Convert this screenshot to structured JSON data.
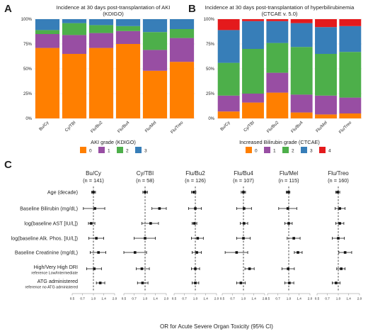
{
  "panel_a": {
    "letter": "A",
    "chart_data": {
      "type": "bar",
      "stacked": true,
      "title": "Incidence at 30 days post-transplantation of AKI\n(KDIGO)",
      "title_lines": [
        "Incidence at 30 days post-transplantation of AKI",
        "(KDIGO)"
      ],
      "categories": [
        "Bu/Cy",
        "Cy/TBI",
        "Flu/Bu2",
        "Flu/Bu4",
        "Flu/Mel",
        "Flu/Treo"
      ],
      "y_ticks": [
        "0%",
        "25%",
        "50%",
        "75%",
        "100%"
      ],
      "ylim": [
        0,
        100
      ],
      "legend_title": "AKI grade (KDIGO)",
      "legend_placement": "bottom",
      "series": [
        {
          "name": "0",
          "color": "#FF7F00",
          "values": [
            71,
            65,
            71,
            75,
            48,
            57
          ]
        },
        {
          "name": "1",
          "color": "#984EA3",
          "values": [
            14,
            19,
            15,
            13,
            21,
            24
          ]
        },
        {
          "name": "2",
          "color": "#4DAF4A",
          "values": [
            4,
            12,
            8,
            5,
            18,
            9
          ]
        },
        {
          "name": "3",
          "color": "#377EB8",
          "values": [
            11,
            4,
            6,
            7,
            13,
            10
          ]
        }
      ]
    }
  },
  "panel_b": {
    "letter": "B",
    "chart_data": {
      "type": "bar",
      "stacked": true,
      "title": "Incidence at 30 days post-transplantation of hyperbilirubinemia\n(CTCAE v. 5.0)",
      "title_lines": [
        "Incidence at 30 days post-transplantation of hyperbilirubinemia",
        "(CTCAE v. 5.0)"
      ],
      "categories": [
        "Bu/Cy",
        "Cy/TBI",
        "Flu/Bu2",
        "Flu/Bu4",
        "Flu/Mel",
        "Flu/Treo"
      ],
      "y_ticks": [
        "0%",
        "25%",
        "50%",
        "75%",
        "100%"
      ],
      "ylim": [
        0,
        100
      ],
      "legend_title": "Increased Bilirubin grade (CTCAE)",
      "legend_placement": "bottom",
      "series": [
        {
          "name": "0",
          "color": "#FF7F00",
          "values": [
            7,
            16,
            26,
            6,
            4,
            5
          ]
        },
        {
          "name": "1",
          "color": "#984EA3",
          "values": [
            16,
            9,
            20,
            18,
            19,
            16
          ]
        },
        {
          "name": "2",
          "color": "#4DAF4A",
          "values": [
            33,
            45,
            30,
            48,
            42,
            46
          ]
        },
        {
          "name": "3",
          "color": "#377EB8",
          "values": [
            33,
            28,
            22,
            24,
            27,
            26
          ]
        },
        {
          "name": "4",
          "color": "#E41A1C",
          "values": [
            11,
            2,
            2,
            4,
            8,
            7
          ]
        }
      ]
    }
  },
  "panel_c": {
    "letter": "C",
    "chart_data": {
      "type": "scatter",
      "subtype": "forest",
      "x_scale": "log",
      "xlabel": "OR for Acute Severe Organ Toxicity (95% CI)",
      "x_ticks": [
        0.5,
        0.7,
        1.0,
        1.4,
        2.0
      ],
      "x_tick_labels": [
        "0.5",
        "0.7",
        "1.0",
        "1.4",
        "2.0"
      ],
      "reference_line": 1.0,
      "rows": [
        {
          "label": "Age (decade)",
          "sublabel": ""
        },
        {
          "label": "Baseline Bilirubin (mg/dL)",
          "sublabel": ""
        },
        {
          "label": "log(baseline AST [IU/L])",
          "sublabel": ""
        },
        {
          "label": "log(baseline Alk. Phos. [IU/L])",
          "sublabel": ""
        },
        {
          "label": "Baseline Creatinine (mg/dL)",
          "sublabel": ""
        },
        {
          "label": "High/Very High DRI",
          "sublabel": "reference Low/Intermediate"
        },
        {
          "label": "ATG administered",
          "sublabel": "reference no ATG administered"
        }
      ],
      "groups": [
        {
          "name": "Bu/Cy",
          "n": "(n = 141)",
          "or": [
            1.0,
            1.05,
            0.93,
            1.1,
            1.18,
            1.03,
            1.25
          ],
          "lo": [
            0.94,
            0.72,
            0.85,
            0.86,
            0.9,
            0.8,
            1.1
          ],
          "hi": [
            1.07,
            1.45,
            1.05,
            1.4,
            1.5,
            1.3,
            1.45
          ]
        },
        {
          "name": "Cy/TBI",
          "n": "(n = 58)",
          "or": [
            1.0,
            1.6,
            1.2,
            1.0,
            0.72,
            0.9,
            0.92
          ],
          "lo": [
            0.93,
            1.25,
            0.9,
            0.7,
            0.5,
            0.75,
            0.78
          ],
          "hi": [
            1.08,
            2.0,
            1.55,
            1.4,
            1.05,
            1.15,
            1.1
          ]
        },
        {
          "name": "Flu/Bu2",
          "n": "(n = 126)",
          "or": [
            0.95,
            1.0,
            0.97,
            1.08,
            1.05,
            1.0,
            1.0
          ],
          "lo": [
            0.88,
            0.8,
            0.9,
            0.88,
            0.9,
            0.88,
            0.9
          ],
          "hi": [
            1.02,
            1.22,
            1.05,
            1.3,
            1.22,
            1.15,
            1.12
          ]
        },
        {
          "name": "Flu/Bu4",
          "n": "(n = 107)",
          "or": [
            1.0,
            1.02,
            1.02,
            1.0,
            0.8,
            1.22,
            0.92
          ],
          "lo": [
            0.93,
            0.8,
            0.9,
            0.8,
            0.55,
            1.05,
            0.8
          ],
          "hi": [
            1.07,
            1.3,
            1.15,
            1.25,
            1.15,
            1.42,
            1.06
          ]
        },
        {
          "name": "Flu/Mel",
          "n": "(n = 115)",
          "or": [
            0.98,
            0.97,
            1.0,
            1.18,
            1.35,
            0.98,
            1.02
          ],
          "lo": [
            0.92,
            0.72,
            0.88,
            0.95,
            1.2,
            0.8,
            0.88
          ],
          "hi": [
            1.04,
            1.3,
            1.12,
            1.45,
            1.55,
            1.2,
            1.18
          ]
        },
        {
          "name": "Flu/Treo",
          "n": "(n = 160)",
          "or": [
            0.98,
            1.05,
            1.05,
            1.0,
            1.25,
            1.1,
            0.93
          ],
          "lo": [
            0.92,
            0.9,
            0.92,
            0.82,
            1.02,
            0.95,
            0.82
          ],
          "hi": [
            1.05,
            1.25,
            1.2,
            1.22,
            1.55,
            1.25,
            1.06
          ]
        }
      ]
    }
  }
}
